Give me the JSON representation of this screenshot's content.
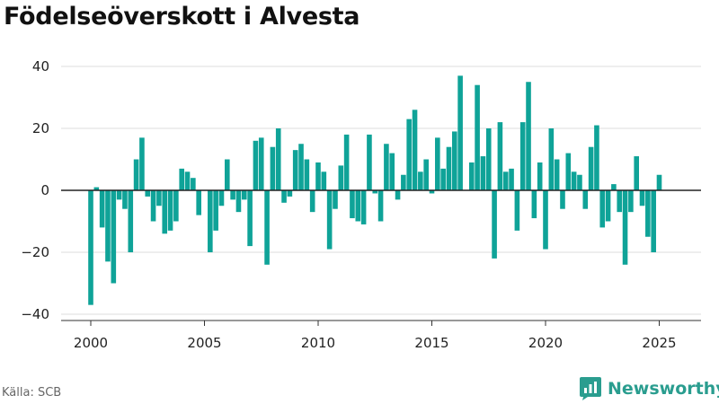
{
  "title": "Födelseöverskott i Alvesta",
  "source": "Källa: SCB",
  "brand": {
    "name": "Newsworthy",
    "icon": "newsworthy-logo-icon"
  },
  "colors": {
    "bar": "#0FA398",
    "brand": "#2A9D8F",
    "grid": "#dddddd",
    "zero_line": "#222222"
  },
  "chart_data": {
    "type": "bar",
    "title": "Födelseöverskott i Alvesta",
    "xlabel": "",
    "ylabel": "",
    "ylim": [
      -45,
      45
    ],
    "xlim": [
      1999,
      2026
    ],
    "grid": true,
    "yticks": [
      -40,
      -20,
      0,
      20,
      40
    ],
    "ytick_labels": [
      "−40",
      "−20",
      "0",
      "20",
      "40"
    ],
    "xticks": [
      2000,
      2005,
      2010,
      2015,
      2020,
      2025
    ],
    "xtick_labels": [
      "2000",
      "2005",
      "2010",
      "2015",
      "2020",
      "2025"
    ],
    "start_year": 2000,
    "start_quarter": 1,
    "series": [
      {
        "values": [
          -37,
          1,
          -12,
          -23,
          -30,
          -3,
          -6,
          -20,
          10,
          17,
          -2,
          -10,
          -5,
          -14,
          -13,
          -10,
          7,
          6,
          4,
          -8,
          0,
          -20,
          -13,
          -5,
          10,
          -3,
          -7,
          -3,
          -18,
          16,
          17,
          -24,
          14,
          20,
          -4,
          -2,
          13,
          15,
          10,
          -7,
          9,
          6,
          -19,
          -6,
          8,
          18,
          -9,
          -10,
          -11,
          18,
          -1,
          -10,
          15,
          12,
          -3,
          5,
          23,
          26,
          6,
          10,
          -1,
          17,
          7,
          14,
          19,
          37,
          0,
          9,
          34,
          11,
          20,
          -22,
          22,
          6,
          7,
          -13,
          22,
          35,
          -9,
          9,
          -19,
          20,
          10,
          -6,
          12,
          6,
          5,
          -6,
          14,
          21,
          -12,
          -10,
          2,
          -7,
          -24,
          -7,
          11,
          -5,
          -15,
          -20,
          5
        ]
      }
    ]
  }
}
